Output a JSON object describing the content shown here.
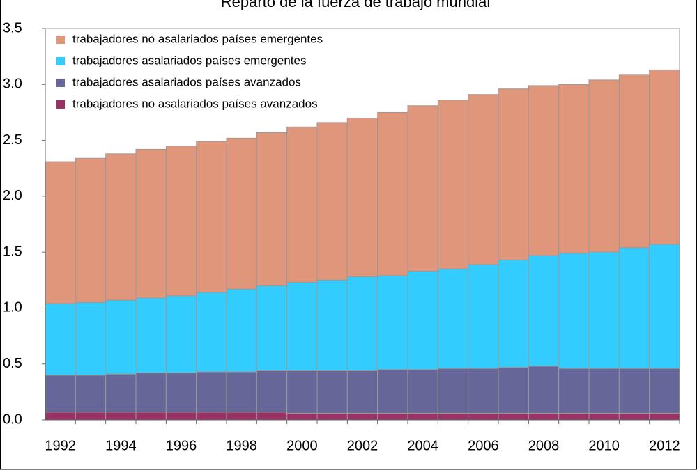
{
  "chart_data": {
    "type": "stacked-bar",
    "title": "Reparto de la fuerza de trabajo mundial",
    "categories": [
      "1992",
      null,
      "1994",
      null,
      "1996",
      null,
      "1998",
      null,
      "2000",
      null,
      "2002",
      null,
      "2004",
      null,
      "2006",
      null,
      "2008",
      null,
      "2010",
      null,
      "2012"
    ],
    "series": [
      {
        "name": "trabajadores no asalariados países avanzados",
        "color": "#993366",
        "values": [
          0.07,
          0.07,
          0.07,
          0.07,
          0.07,
          0.07,
          0.07,
          0.07,
          0.06,
          0.06,
          0.06,
          0.06,
          0.06,
          0.06,
          0.06,
          0.06,
          0.06,
          0.06,
          0.06,
          0.06,
          0.06
        ]
      },
      {
        "name": "trabajadores asalariados países avanzados",
        "color": "#666699",
        "values": [
          0.33,
          0.33,
          0.34,
          0.35,
          0.35,
          0.36,
          0.36,
          0.37,
          0.38,
          0.38,
          0.38,
          0.39,
          0.39,
          0.4,
          0.4,
          0.41,
          0.42,
          0.4,
          0.4,
          0.4,
          0.4
        ]
      },
      {
        "name": "trabajadores asalariados países emergentes",
        "color": "#33ccff",
        "values": [
          0.64,
          0.65,
          0.66,
          0.67,
          0.69,
          0.71,
          0.74,
          0.76,
          0.79,
          0.81,
          0.84,
          0.84,
          0.88,
          0.89,
          0.93,
          0.96,
          0.99,
          1.03,
          1.04,
          1.08,
          1.11
        ]
      },
      {
        "name": "trabajadores no asalariados países emergentes",
        "color": "#e0967a",
        "values": [
          1.27,
          1.29,
          1.31,
          1.33,
          1.34,
          1.35,
          1.35,
          1.37,
          1.39,
          1.41,
          1.42,
          1.46,
          1.48,
          1.51,
          1.52,
          1.53,
          1.52,
          1.51,
          1.54,
          1.55,
          1.56
        ]
      }
    ],
    "ylim": [
      0,
      3.5
    ],
    "yticks": [
      {
        "value": 0,
        "label": "0.0"
      },
      0.5,
      {
        "value": 1,
        "label": "1.0"
      },
      1.5,
      {
        "value": 2,
        "label": "2.0"
      },
      2.5,
      {
        "value": 3,
        "label": "3.0"
      },
      3.5
    ],
    "legend": "top-left"
  }
}
